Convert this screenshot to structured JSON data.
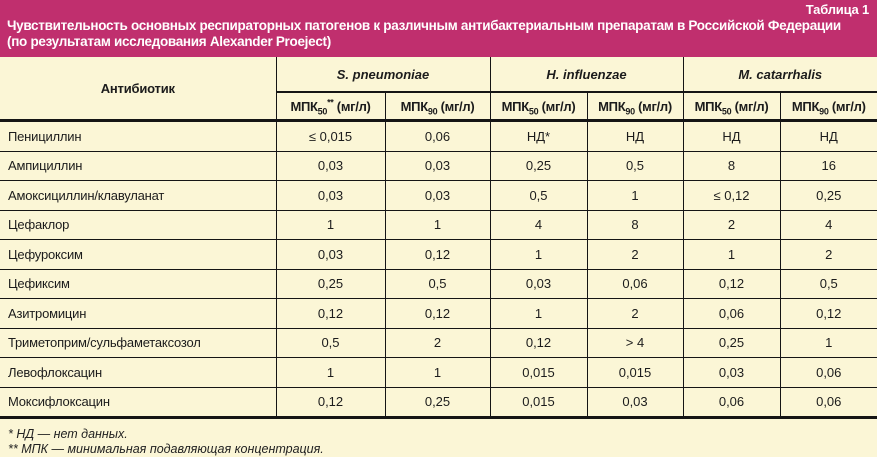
{
  "header": {
    "table_label": "Таблица 1",
    "title_line1": "Чувствительность основных респираторных патогенов к различным антибактериальным препаратам в Российской Федерации",
    "title_line2": "(по результатам исследования Alexander Proeject)"
  },
  "colors": {
    "band_background": "#C02F6E",
    "page_background": "#FBF6D6",
    "border": "#151515",
    "band_text": "#FFFFFF",
    "text": "#1C1C1C"
  },
  "table": {
    "antibiotic_header": "Антибиотик",
    "groups": [
      {
        "name": "S. pneumoniae"
      },
      {
        "name": "H. influenzae"
      },
      {
        "name": "M. catarrhalis"
      }
    ],
    "subheaders": [
      {
        "base": "МПК",
        "sub": "50",
        "sup": "**",
        "unit": "(мг/л)"
      },
      {
        "base": "МПК",
        "sub": "90",
        "sup": "",
        "unit": "(мг/л)"
      },
      {
        "base": "МПК",
        "sub": "50",
        "sup": "",
        "unit": "(мг/л)"
      },
      {
        "base": "МПК",
        "sub": "90",
        "sup": "",
        "unit": "(мг/л)"
      },
      {
        "base": "МПК",
        "sub": "50",
        "sup": "",
        "unit": "(мг/л)"
      },
      {
        "base": "МПК",
        "sub": "90",
        "sup": "",
        "unit": "(мг/л)"
      }
    ],
    "rows": [
      [
        "Пенициллин",
        "≤ 0,015",
        "0,06",
        "НД*",
        "НД",
        "НД",
        "НД"
      ],
      [
        "Ампициллин",
        "0,03",
        "0,03",
        "0,25",
        "0,5",
        "8",
        "16"
      ],
      [
        "Амоксициллин/клавуланат",
        "0,03",
        "0,03",
        "0,5",
        "1",
        "≤ 0,12",
        "0,25"
      ],
      [
        "Цефаклор",
        "1",
        "1",
        "4",
        "8",
        "2",
        "4"
      ],
      [
        "Цефуроксим",
        "0,03",
        "0,12",
        "1",
        "2",
        "1",
        "2"
      ],
      [
        "Цефиксим",
        "0,25",
        "0,5",
        "0,03",
        "0,06",
        "0,12",
        "0,5"
      ],
      [
        "Азитромицин",
        "0,12",
        "0,12",
        "1",
        "2",
        "0,06",
        "0,12"
      ],
      [
        "Триметоприм/сульфаметаксозол",
        "0,5",
        "2",
        "0,12",
        "> 4",
        "0,25",
        "1"
      ],
      [
        "Левофлоксацин",
        "1",
        "1",
        "0,015",
        "0,015",
        "0,03",
        "0,06"
      ],
      [
        "Моксифлоксацин",
        "0,12",
        "0,25",
        "0,015",
        "0,03",
        "0,06",
        "0,06"
      ]
    ]
  },
  "footnotes": [
    "* НД — нет данных.",
    "** МПК — минимальная подавляющая концентрация."
  ]
}
